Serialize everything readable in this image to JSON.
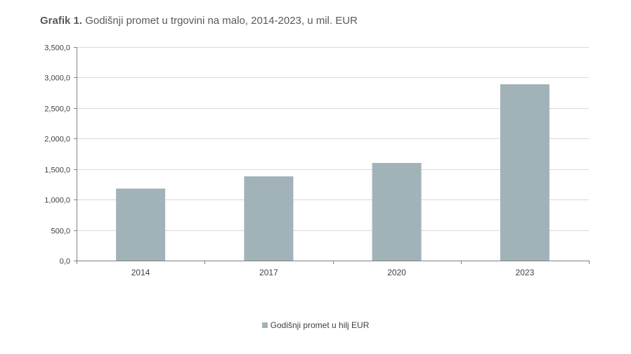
{
  "title": {
    "prefix": "Grafik 1.",
    "text": "Godišnji promet u trgovini na malo, 2014-2023, u mil. EUR"
  },
  "colors": {
    "bar": "#a1b2b8",
    "grid": "#d9d9d9",
    "axis": "#808080"
  },
  "chart_data": {
    "type": "bar",
    "title": "Grafik 1. Godišnji promet u trgovini na malo, 2014-2023, u mil. EUR",
    "categories": [
      "2014",
      "2017",
      "2020",
      "2023"
    ],
    "series": [
      {
        "name": "Godišnji promet u hilj EUR",
        "values": [
          1180,
          1380,
          1600,
          2890
        ]
      }
    ],
    "y_ticks": [
      "0,0",
      "500,0",
      "1,000,0",
      "1,500,0",
      "2,000,0",
      "2,500,0",
      "3,000,0",
      "3,500,0"
    ],
    "ylim": [
      0,
      3500
    ],
    "y_step": 500,
    "xlabel": "",
    "ylabel": "",
    "grid": true,
    "legend_position": "bottom"
  }
}
